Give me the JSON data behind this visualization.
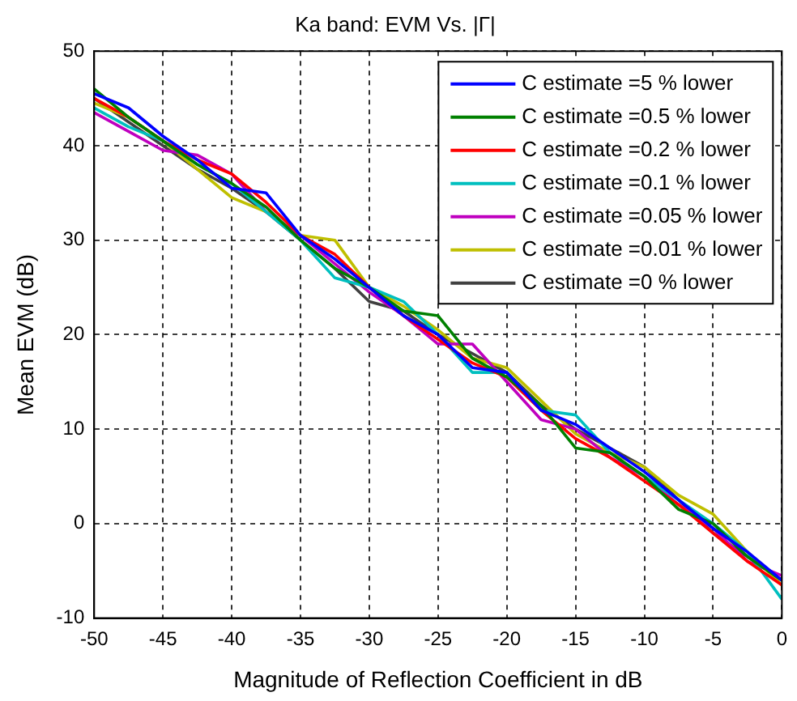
{
  "chart_data": {
    "type": "line",
    "title": "Ka band: EVM Vs. |Γ|",
    "xlabel": "Magnitude of Reflection Coefficient in dB",
    "ylabel": "Mean EVM (dB)",
    "x": [
      -50,
      -47.5,
      -45,
      -42.5,
      -40,
      -37.5,
      -35,
      -32.5,
      -30,
      -27.5,
      -25,
      -22.5,
      -20,
      -17.5,
      -15,
      -12.5,
      -10,
      -7.5,
      -5,
      -2.5,
      0
    ],
    "xlim": [
      -50,
      0
    ],
    "ylim": [
      -10,
      50
    ],
    "xticks": [
      -50,
      -45,
      -40,
      -35,
      -30,
      -25,
      -20,
      -15,
      -10,
      -5,
      0
    ],
    "yticks": [
      -10,
      0,
      10,
      20,
      30,
      40,
      50
    ],
    "grid": true,
    "legend": "top right",
    "line_style": "solid",
    "series": [
      {
        "name": "C estimate =5 % lower",
        "color": "#0000ff",
        "values": [
          45.5,
          44,
          41,
          38.5,
          35.5,
          35,
          30.5,
          28,
          25,
          22,
          20,
          16.5,
          16,
          12,
          10.5,
          8,
          5.5,
          2.5,
          -0.5,
          -3,
          -6
        ]
      },
      {
        "name": "C estimate =0.5 % lower",
        "color": "#008000",
        "values": [
          46,
          43,
          40.5,
          38,
          36,
          33.5,
          30,
          27,
          25,
          22.5,
          22,
          17.5,
          15.5,
          12.5,
          8,
          7.5,
          5,
          1.5,
          0,
          -3.5,
          -6
        ]
      },
      {
        "name": "C estimate =0.2 % lower",
        "color": "#ff0000",
        "values": [
          45,
          43,
          40.5,
          38.5,
          37,
          34,
          30.5,
          28.5,
          25,
          22,
          19.5,
          17,
          15.5,
          12,
          9,
          7,
          4.5,
          2,
          -1,
          -4,
          -6.5
        ]
      },
      {
        "name": "C estimate =0.1 % lower",
        "color": "#00bfbf",
        "values": [
          44,
          42,
          40.5,
          38,
          36,
          33,
          30,
          26,
          25,
          23.5,
          20,
          16,
          16,
          12,
          11.5,
          7.5,
          5,
          2.5,
          0,
          -3,
          -8
        ]
      },
      {
        "name": "C estimate =0.05 % lower",
        "color": "#bf00bf",
        "values": [
          43.5,
          41.5,
          39.5,
          39,
          37,
          33,
          30.5,
          27.5,
          24.5,
          22,
          19,
          19,
          15,
          11,
          10,
          7,
          5,
          2,
          -0.5,
          -4,
          -5.5
        ]
      },
      {
        "name": "C estimate =0.01 % lower",
        "color": "#bfbf00",
        "values": [
          44.5,
          43,
          40.5,
          37.5,
          34.5,
          33,
          30.5,
          30,
          25,
          23,
          20.5,
          17.5,
          16.5,
          13,
          9.5,
          7.5,
          6,
          3,
          1,
          -3,
          -6.5
        ]
      },
      {
        "name": "C estimate =0 % lower",
        "color": "#404040",
        "values": [
          45,
          42.5,
          40,
          37.5,
          35.5,
          33,
          30,
          27,
          23.5,
          22.5,
          20,
          18,
          16,
          12.5,
          10,
          8,
          6,
          2.5,
          -1,
          -3.5,
          -6
        ]
      }
    ]
  }
}
